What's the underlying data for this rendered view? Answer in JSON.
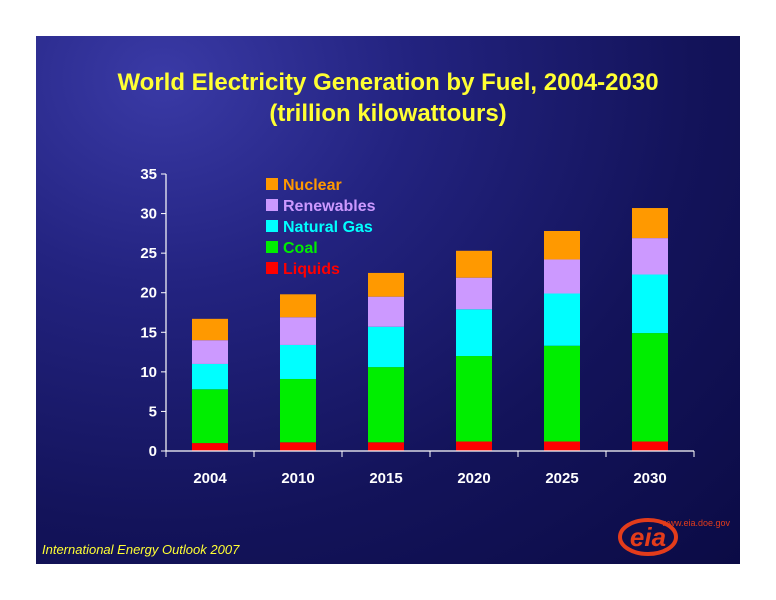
{
  "title_line1": "World Electricity Generation by Fuel, 2004-2030",
  "title_line2": "(trillion kilowattours)",
  "footer_text": "International Energy Outlook 2007",
  "logo": {
    "text": "eia",
    "url_text": "www.eia.doe.gov",
    "color": "#e33c1b"
  },
  "chart_data": {
    "type": "bar",
    "stacked": true,
    "title": "World Electricity Generation by Fuel, 2004-2030 (trillion kilowattours)",
    "categories": [
      "2004",
      "2010",
      "2015",
      "2020",
      "2025",
      "2030"
    ],
    "ylim": [
      0,
      35
    ],
    "yticks": [
      0,
      5,
      10,
      15,
      20,
      25,
      30,
      35
    ],
    "grid": false,
    "legend_position": "top-left",
    "series": [
      {
        "name": "Liquids",
        "color": "#ff0000",
        "values": [
          1.0,
          1.1,
          1.1,
          1.2,
          1.2,
          1.2
        ]
      },
      {
        "name": "Coal",
        "color": "#00ee00",
        "values": [
          6.8,
          8.0,
          9.5,
          10.8,
          12.1,
          13.7
        ]
      },
      {
        "name": "Natural Gas",
        "color": "#00ffff",
        "values": [
          3.2,
          4.3,
          5.1,
          5.9,
          6.6,
          7.4
        ]
      },
      {
        "name": "Renewables",
        "color": "#cc99ff",
        "values": [
          3.0,
          3.5,
          3.8,
          4.0,
          4.3,
          4.6
        ]
      },
      {
        "name": "Nuclear",
        "color": "#ff9900",
        "values": [
          2.7,
          2.9,
          3.0,
          3.4,
          3.6,
          3.8
        ]
      }
    ],
    "legend_order": [
      "Nuclear",
      "Renewables",
      "Natural Gas",
      "Coal",
      "Liquids"
    ]
  }
}
